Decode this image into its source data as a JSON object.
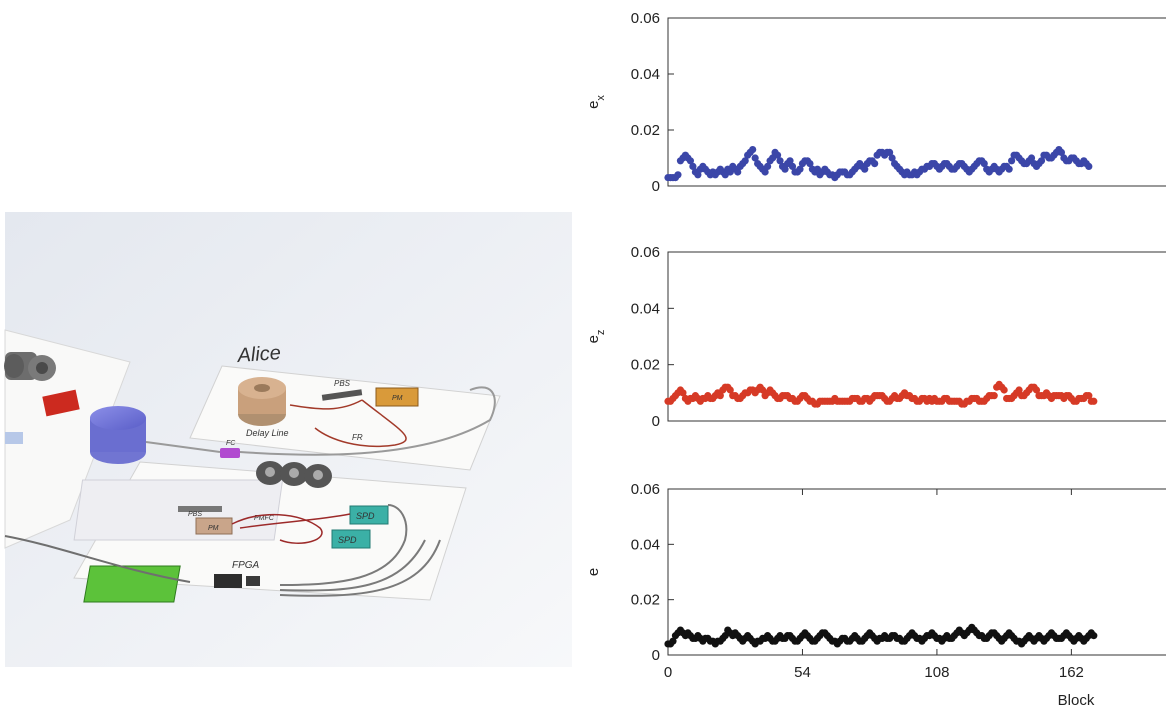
{
  "diagram": {
    "title_label": "Alice",
    "component_labels": {
      "delay_line": "Delay Line",
      "pbs_top": "PBS",
      "pm_top": "PM",
      "fr": "FR",
      "fc": "FC",
      "pbs_lower": "PBS",
      "pm_lower": "PM",
      "pmfc": "PMFC",
      "spd_1": "SPD",
      "spd_2": "SPD",
      "fpga": "FPGA"
    }
  },
  "chart_data": [
    {
      "type": "scatter",
      "title": "",
      "xlabel": "",
      "ylabel": "e",
      "ylabel_sub": "x",
      "xlim": [
        0,
        200
      ],
      "ylim": [
        0,
        0.06
      ],
      "yticks": [
        "0",
        "0.02",
        "0.04",
        "0.06"
      ],
      "xticks": [],
      "grid": false,
      "color": "#3b46a8",
      "x_step": 1,
      "y": [
        0.003,
        0.003,
        0.003,
        0.003,
        0.004,
        0.009,
        0.01,
        0.011,
        0.01,
        0.009,
        0.007,
        0.005,
        0.004,
        0.006,
        0.007,
        0.006,
        0.005,
        0.004,
        0.005,
        0.004,
        0.005,
        0.006,
        0.005,
        0.004,
        0.006,
        0.005,
        0.007,
        0.006,
        0.005,
        0.007,
        0.008,
        0.009,
        0.011,
        0.012,
        0.013,
        0.01,
        0.008,
        0.007,
        0.006,
        0.005,
        0.007,
        0.009,
        0.01,
        0.012,
        0.011,
        0.009,
        0.007,
        0.006,
        0.008,
        0.009,
        0.007,
        0.005,
        0.005,
        0.006,
        0.008,
        0.009,
        0.009,
        0.008,
        0.006,
        0.005,
        0.006,
        0.004,
        0.005,
        0.006,
        0.005,
        0.004,
        0.004,
        0.003,
        0.004,
        0.005,
        0.005,
        0.005,
        0.004,
        0.004,
        0.005,
        0.006,
        0.007,
        0.008,
        0.007,
        0.006,
        0.008,
        0.009,
        0.009,
        0.008,
        0.011,
        0.012,
        0.012,
        0.011,
        0.012,
        0.012,
        0.01,
        0.008,
        0.007,
        0.006,
        0.005,
        0.004,
        0.005,
        0.004,
        0.004,
        0.005,
        0.004,
        0.005,
        0.006,
        0.006,
        0.007,
        0.007,
        0.008,
        0.008,
        0.007,
        0.006,
        0.007,
        0.008,
        0.008,
        0.007,
        0.006,
        0.006,
        0.007,
        0.008,
        0.008,
        0.007,
        0.006,
        0.005,
        0.006,
        0.007,
        0.008,
        0.009,
        0.009,
        0.008,
        0.006,
        0.005,
        0.006,
        0.007,
        0.006,
        0.005,
        0.006,
        0.007,
        0.007,
        0.006,
        0.009,
        0.011,
        0.011,
        0.01,
        0.009,
        0.008,
        0.008,
        0.009,
        0.01,
        0.008,
        0.007,
        0.008,
        0.009,
        0.011,
        0.011,
        0.01,
        0.01,
        0.011,
        0.012,
        0.013,
        0.012,
        0.01,
        0.009,
        0.009,
        0.01,
        0.01,
        0.009,
        0.008,
        0.008,
        0.009,
        0.008,
        0.007
      ]
    },
    {
      "type": "scatter",
      "title": "",
      "xlabel": "",
      "ylabel": "e",
      "ylabel_sub": "z",
      "xlim": [
        0,
        200
      ],
      "ylim": [
        0,
        0.06
      ],
      "yticks": [
        "0",
        "0.02",
        "0.04",
        "0.06"
      ],
      "xticks": [],
      "grid": false,
      "color": "#d63a26",
      "x_step": 1,
      "y": [
        0.007,
        0.007,
        0.008,
        0.009,
        0.01,
        0.011,
        0.01,
        0.008,
        0.007,
        0.008,
        0.008,
        0.009,
        0.008,
        0.007,
        0.008,
        0.008,
        0.009,
        0.008,
        0.008,
        0.009,
        0.01,
        0.009,
        0.011,
        0.012,
        0.012,
        0.011,
        0.009,
        0.009,
        0.008,
        0.008,
        0.009,
        0.01,
        0.01,
        0.011,
        0.011,
        0.01,
        0.011,
        0.012,
        0.011,
        0.009,
        0.01,
        0.011,
        0.01,
        0.009,
        0.008,
        0.008,
        0.009,
        0.009,
        0.009,
        0.008,
        0.008,
        0.007,
        0.007,
        0.008,
        0.009,
        0.009,
        0.008,
        0.007,
        0.007,
        0.006,
        0.006,
        0.007,
        0.007,
        0.007,
        0.007,
        0.007,
        0.007,
        0.008,
        0.007,
        0.007,
        0.007,
        0.007,
        0.007,
        0.007,
        0.008,
        0.008,
        0.008,
        0.007,
        0.007,
        0.008,
        0.008,
        0.007,
        0.008,
        0.009,
        0.009,
        0.009,
        0.009,
        0.008,
        0.007,
        0.007,
        0.008,
        0.009,
        0.008,
        0.008,
        0.009,
        0.01,
        0.009,
        0.009,
        0.008,
        0.008,
        0.007,
        0.007,
        0.008,
        0.008,
        0.007,
        0.008,
        0.007,
        0.008,
        0.007,
        0.007,
        0.007,
        0.008,
        0.008,
        0.007,
        0.007,
        0.007,
        0.007,
        0.007,
        0.006,
        0.006,
        0.007,
        0.007,
        0.008,
        0.008,
        0.008,
        0.007,
        0.007,
        0.007,
        0.008,
        0.009,
        0.009,
        0.009,
        0.012,
        0.013,
        0.012,
        0.011,
        0.008,
        0.008,
        0.008,
        0.009,
        0.01,
        0.011,
        0.009,
        0.009,
        0.01,
        0.011,
        0.012,
        0.012,
        0.011,
        0.009,
        0.009,
        0.009,
        0.01,
        0.009,
        0.008,
        0.009,
        0.009,
        0.009,
        0.009,
        0.008,
        0.009,
        0.009,
        0.008,
        0.007,
        0.007,
        0.008,
        0.008,
        0.008,
        0.009,
        0.009,
        0.007,
        0.007
      ]
    },
    {
      "type": "scatter",
      "title": "",
      "xlabel": "Block",
      "ylabel": "e",
      "ylabel_sub": "",
      "xlim": [
        0,
        200
      ],
      "ylim": [
        0,
        0.06
      ],
      "yticks": [
        "0",
        "0.02",
        "0.04",
        "0.06"
      ],
      "xticks": [
        "0",
        "54",
        "108",
        "162"
      ],
      "xtick_values": [
        0,
        54,
        108,
        162
      ],
      "grid": false,
      "color": "#111111",
      "x_step": 1,
      "y": [
        0.004,
        0.004,
        0.005,
        0.007,
        0.008,
        0.009,
        0.008,
        0.007,
        0.008,
        0.007,
        0.006,
        0.006,
        0.007,
        0.006,
        0.005,
        0.006,
        0.006,
        0.005,
        0.005,
        0.004,
        0.005,
        0.005,
        0.006,
        0.007,
        0.009,
        0.008,
        0.007,
        0.008,
        0.007,
        0.006,
        0.005,
        0.006,
        0.007,
        0.006,
        0.005,
        0.004,
        0.005,
        0.005,
        0.006,
        0.006,
        0.007,
        0.006,
        0.005,
        0.005,
        0.006,
        0.007,
        0.006,
        0.006,
        0.007,
        0.007,
        0.006,
        0.005,
        0.005,
        0.006,
        0.007,
        0.008,
        0.007,
        0.006,
        0.005,
        0.005,
        0.006,
        0.007,
        0.008,
        0.008,
        0.007,
        0.006,
        0.005,
        0.005,
        0.004,
        0.005,
        0.006,
        0.006,
        0.005,
        0.005,
        0.006,
        0.007,
        0.006,
        0.005,
        0.005,
        0.006,
        0.007,
        0.008,
        0.007,
        0.006,
        0.005,
        0.006,
        0.006,
        0.007,
        0.006,
        0.006,
        0.007,
        0.007,
        0.006,
        0.006,
        0.005,
        0.005,
        0.006,
        0.007,
        0.008,
        0.007,
        0.006,
        0.006,
        0.005,
        0.006,
        0.007,
        0.007,
        0.008,
        0.007,
        0.006,
        0.006,
        0.005,
        0.006,
        0.007,
        0.006,
        0.006,
        0.007,
        0.008,
        0.009,
        0.008,
        0.007,
        0.008,
        0.009,
        0.01,
        0.009,
        0.008,
        0.007,
        0.007,
        0.006,
        0.006,
        0.007,
        0.008,
        0.008,
        0.007,
        0.006,
        0.005,
        0.006,
        0.007,
        0.008,
        0.007,
        0.006,
        0.005,
        0.005,
        0.004,
        0.005,
        0.006,
        0.007,
        0.006,
        0.005,
        0.006,
        0.007,
        0.006,
        0.005,
        0.006,
        0.007,
        0.008,
        0.007,
        0.006,
        0.006,
        0.006,
        0.007,
        0.008,
        0.007,
        0.006,
        0.005,
        0.006,
        0.007,
        0.006,
        0.005,
        0.006,
        0.007,
        0.008,
        0.007
      ]
    }
  ]
}
